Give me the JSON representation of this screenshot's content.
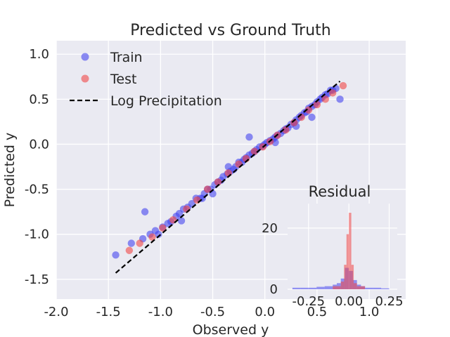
{
  "chart_data": [
    {
      "type": "scatter",
      "title": "Predicted vs Ground Truth",
      "xlabel": "Observed y",
      "ylabel": "Predicted y",
      "xlim": [
        -2.0,
        1.35
      ],
      "ylim": [
        -1.72,
        1.15
      ],
      "xticks": [
        "-2.0",
        "-1.5",
        "-1.0",
        "-0.5",
        "0.0",
        "0.5",
        "1.0"
      ],
      "yticks": [
        "-1.5",
        "-1.0",
        "-0.5",
        "0.0",
        "0.5",
        "1.0"
      ],
      "grid": true,
      "legend_position": "top-left",
      "legend": [
        "Train",
        "Test",
        "Log Precipitation"
      ],
      "colors": {
        "train": "#4444ee",
        "test": "#f04646",
        "line": "#000000",
        "background": "#eaeaf2",
        "grid": "#ffffff"
      },
      "series": [
        {
          "name": "Train",
          "x": [
            -1.43,
            -1.28,
            -1.17,
            -1.15,
            -1.1,
            -1.05,
            -1.02,
            -0.98,
            -0.93,
            -0.9,
            -0.85,
            -0.82,
            -0.78,
            -0.74,
            -0.7,
            -0.66,
            -0.62,
            -0.58,
            -0.55,
            -0.52,
            -0.48,
            -0.45,
            -0.42,
            -0.4,
            -0.36,
            -0.33,
            -0.3,
            -0.28,
            -0.25,
            -0.22,
            -0.2,
            -0.18,
            -0.15,
            -0.12,
            -0.1,
            -0.08,
            -0.05,
            -0.02,
            0.0,
            0.02,
            0.05,
            0.08,
            0.1,
            0.12,
            0.15,
            0.18,
            0.2,
            0.22,
            0.25,
            0.28,
            0.3,
            0.33,
            0.35,
            0.38,
            0.4,
            0.42,
            0.45,
            0.48,
            0.5,
            0.53,
            0.55,
            0.58,
            0.6,
            0.63,
            0.65,
            0.68,
            0.72,
            -0.6,
            -0.35,
            -0.15,
            0.1,
            0.3,
            0.45,
            -0.8,
            -0.5
          ],
          "y": [
            -1.23,
            -1.1,
            -1.05,
            -0.75,
            -1.0,
            -0.96,
            -1.0,
            -0.92,
            -0.88,
            -0.86,
            -0.8,
            -0.77,
            -0.72,
            -0.7,
            -0.66,
            -0.6,
            -0.6,
            -0.55,
            -0.5,
            -0.5,
            -0.45,
            -0.42,
            -0.4,
            -0.36,
            -0.33,
            -0.3,
            -0.28,
            -0.25,
            -0.2,
            -0.2,
            -0.17,
            -0.15,
            -0.12,
            -0.1,
            -0.08,
            -0.06,
            -0.03,
            -0.02,
            0.0,
            0.02,
            0.04,
            0.06,
            0.08,
            0.1,
            0.12,
            0.15,
            0.17,
            0.18,
            0.22,
            0.24,
            0.27,
            0.3,
            0.32,
            0.35,
            0.36,
            0.4,
            0.42,
            0.44,
            0.47,
            0.5,
            0.52,
            0.55,
            0.56,
            0.6,
            0.6,
            0.62,
            0.5,
            -0.6,
            -0.25,
            0.08,
            0.02,
            0.2,
            0.3,
            -0.85,
            -0.55
          ]
        },
        {
          "name": "Test",
          "x": [
            -1.3,
            -1.2,
            -1.08,
            -0.98,
            -0.88,
            -0.75,
            -0.65,
            -0.55,
            -0.45,
            -0.35,
            -0.25,
            -0.18,
            -0.1,
            -0.02,
            0.05,
            0.12,
            0.2,
            0.28,
            0.35,
            0.42,
            0.5,
            0.58,
            0.65,
            0.75
          ],
          "y": [
            -1.18,
            -1.1,
            -1.03,
            -0.93,
            -0.84,
            -0.72,
            -0.62,
            -0.5,
            -0.42,
            -0.32,
            -0.22,
            -0.16,
            -0.08,
            -0.03,
            0.03,
            0.1,
            0.16,
            0.24,
            0.3,
            0.38,
            0.44,
            0.5,
            0.57,
            0.65
          ]
        },
        {
          "name": "Log Precipitation",
          "type": "line",
          "dashed": true,
          "x": [
            -1.43,
            0.72
          ],
          "y": [
            -1.43,
            0.7
          ]
        }
      ]
    },
    {
      "type": "histogram",
      "title": "Residual",
      "xlim": [
        -0.38,
        0.3
      ],
      "ylim": [
        0,
        28
      ],
      "xticks": [
        "-0.25",
        "0.00",
        "0.25"
      ],
      "yticks": [
        "0",
        "20"
      ],
      "grid": true,
      "colors": {
        "train": "#4444ee",
        "test": "#f04646"
      },
      "series": [
        {
          "name": "Train",
          "bins": [
            -0.35,
            -0.3,
            -0.25,
            -0.2,
            -0.15,
            -0.1,
            -0.075,
            -0.05,
            -0.025,
            0.0,
            0.025,
            0.05,
            0.075,
            0.1,
            0.15,
            0.2,
            0.25
          ],
          "counts": [
            0.5,
            0.5,
            0.5,
            0.8,
            1.0,
            1.5,
            2.0,
            3.5,
            7.0,
            6.0,
            3.0,
            1.5,
            1.0,
            0.5,
            0.5,
            0.3
          ]
        },
        {
          "name": "Test",
          "bins": [
            -0.1,
            -0.05,
            -0.03,
            -0.015,
            0.0,
            0.015,
            0.03,
            0.05,
            0.1
          ],
          "counts": [
            1.0,
            2.5,
            8.0,
            18.0,
            25.0,
            8.0,
            2.0,
            1.0
          ]
        }
      ]
    }
  ]
}
